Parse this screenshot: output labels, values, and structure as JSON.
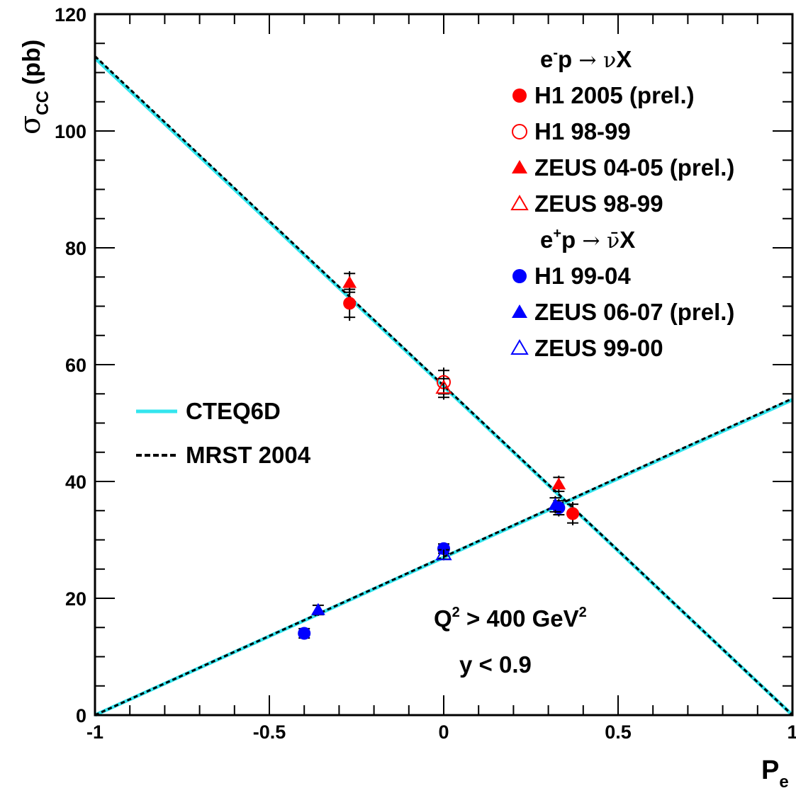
{
  "chart_data": {
    "type": "scatter",
    "xlabel": "P",
    "xlabel_sub": "e",
    "ylabel_sigma": "σ",
    "ylabel_sub": "CC",
    "ylabel_unit": "(pb)",
    "xlim": [
      -1,
      1
    ],
    "ylim": [
      0,
      120
    ],
    "x_ticks": [
      -1,
      -0.5,
      0,
      0.5,
      1
    ],
    "x_tick_labels": [
      "-1",
      "-0.5",
      "0",
      "0.5",
      "1"
    ],
    "y_ticks": [
      0,
      20,
      40,
      60,
      80,
      100,
      120
    ],
    "y_tick_labels": [
      "0",
      "20",
      "40",
      "60",
      "80",
      "100",
      "120"
    ],
    "grid": false,
    "annotations": {
      "q2": {
        "prefix": "Q",
        "sup1": "2",
        "mid": " > 400 GeV",
        "sup2": "2"
      },
      "y": "y < 0.9"
    },
    "legend_headers": [
      {
        "id": "em",
        "lead": "e",
        "charge": "-",
        "rest": "p ",
        "arrow": "→",
        "nu": "ν",
        "x": "X"
      },
      {
        "id": "ep",
        "lead": "e",
        "charge": "+",
        "rest": "p ",
        "arrow": "→",
        "nu": "ν̄",
        "x": "X"
      }
    ],
    "series": [
      {
        "name": "H1 2005 (prel.)",
        "color": "#ff0000",
        "marker": "circle",
        "filled": true,
        "points": [
          {
            "x": -0.27,
            "y": 70.5,
            "err": 3.0
          },
          {
            "x": 0.37,
            "y": 34.5,
            "err": 2.0
          }
        ]
      },
      {
        "name": "H1 98-99",
        "color": "#ff0000",
        "marker": "circle",
        "filled": false,
        "points": [
          {
            "x": 0.0,
            "y": 57.0,
            "err": 2.5
          }
        ]
      },
      {
        "name": "ZEUS 04-05 (prel.)",
        "color": "#ff0000",
        "marker": "triangle",
        "filled": true,
        "points": [
          {
            "x": -0.27,
            "y": 74.0,
            "err": 2.0
          },
          {
            "x": 0.33,
            "y": 39.5,
            "err": 1.5
          }
        ]
      },
      {
        "name": "ZEUS 98-99",
        "color": "#ff0000",
        "marker": "triangle",
        "filled": false,
        "points": [
          {
            "x": 0.0,
            "y": 56.0,
            "err": 2.0
          }
        ]
      },
      {
        "name": "H1 99-04",
        "color": "#0000ff",
        "marker": "circle",
        "filled": true,
        "points": [
          {
            "x": -0.4,
            "y": 14.0,
            "err": 1.0
          },
          {
            "x": 0.0,
            "y": 28.5,
            "err": 1.0
          },
          {
            "x": 0.33,
            "y": 35.5,
            "err": 1.5
          }
        ]
      },
      {
        "name": "ZEUS 06-07 (prel.)",
        "color": "#0000ff",
        "marker": "triangle",
        "filled": true,
        "points": [
          {
            "x": -0.36,
            "y": 18.0,
            "err": 1.0
          },
          {
            "x": 0.32,
            "y": 36.0,
            "err": 1.5
          }
        ]
      },
      {
        "name": "ZEUS 99-00",
        "color": "#0000ff",
        "marker": "triangle",
        "filled": false,
        "points": [
          {
            "x": 0.0,
            "y": 27.5,
            "err": 1.0
          }
        ]
      }
    ],
    "legend_order": [
      {
        "type": "header",
        "ref": 0
      },
      {
        "type": "series",
        "ref": 0
      },
      {
        "type": "series",
        "ref": 1
      },
      {
        "type": "series",
        "ref": 2
      },
      {
        "type": "series",
        "ref": 3
      },
      {
        "type": "header",
        "ref": 1
      },
      {
        "type": "series",
        "ref": 4
      },
      {
        "type": "series",
        "ref": 5
      },
      {
        "type": "series",
        "ref": 6
      }
    ],
    "theory": [
      {
        "name": "CTEQ6D",
        "color": "#33e5ee",
        "style": "solid",
        "lines": [
          [
            [
              -1,
              112.5
            ],
            [
              1,
              0
            ]
          ],
          [
            [
              -1,
              0
            ],
            [
              1,
              54.0
            ]
          ]
        ]
      },
      {
        "name": "MRST 2004",
        "color": "#000000",
        "style": "dashed",
        "lines": [
          [
            [
              -1,
              112.8
            ],
            [
              1,
              0
            ]
          ],
          [
            [
              -1,
              0
            ],
            [
              1,
              54.2
            ]
          ]
        ]
      }
    ]
  }
}
